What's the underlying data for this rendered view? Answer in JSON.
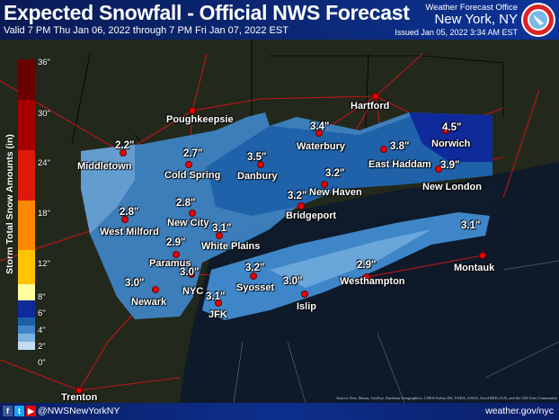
{
  "header": {
    "title": "Expected Snowfall - Official NWS Forecast",
    "valid": "Valid 7 PM Thu Jan 06, 2022 through 7 PM Fri Jan 07, 2022 EST",
    "office_label": "Weather Forecast Office",
    "office": "New York, NY",
    "issued": "Issued Jan 05, 2022 3:34 AM EST",
    "logo_text": "NATIONAL WEATHER SERVICE"
  },
  "legend": {
    "title": "Storm Total Snow Amounts (in)",
    "ticks": [
      "36\"",
      "30\"",
      "24\"",
      "18\"",
      "12\"",
      "8\"",
      "6\"",
      "4\"",
      "2\"",
      "0\""
    ],
    "colors": [
      "#6b0000",
      "#a50000",
      "#dd1a0a",
      "#ff8800",
      "#ffc400",
      "#ffffa0",
      "#0f2a9a",
      "#1c5fa8",
      "#3f86c8",
      "#7db3e0",
      "#c4dcf0"
    ]
  },
  "cities": [
    {
      "name": "Poughkeepsie",
      "value": ""
    },
    {
      "name": "Hartford",
      "value": ""
    },
    {
      "name": "Middletown",
      "value": "2.2\""
    },
    {
      "name": "Cold Spring",
      "value": "2.7\""
    },
    {
      "name": "Danbury",
      "value": "3.5\""
    },
    {
      "name": "Waterbury",
      "value": "3.4\""
    },
    {
      "name": "East Haddam",
      "value": "3.8\""
    },
    {
      "name": "Norwich",
      "value": "4.5\""
    },
    {
      "name": "New London",
      "value": "3.9\""
    },
    {
      "name": "New Haven",
      "value": "3.2\""
    },
    {
      "name": "Bridgeport",
      "value": "3.2\""
    },
    {
      "name": "New City",
      "value": "2.8\""
    },
    {
      "name": "White Plains",
      "value": "3.1\""
    },
    {
      "name": "West Milford",
      "value": "2.8\""
    },
    {
      "name": "Paramus",
      "value": "2.9\""
    },
    {
      "name": "NYC",
      "value": "3.0\""
    },
    {
      "name": "Newark",
      "value": "3.0\""
    },
    {
      "name": "JFK",
      "value": "3.1\""
    },
    {
      "name": "Syosset",
      "value": "3.2\""
    },
    {
      "name": "Islip",
      "value": "3.0\""
    },
    {
      "name": "Westhampton",
      "value": "2.9\""
    },
    {
      "name": "Montauk",
      "value": "3.1\""
    },
    {
      "name": "Trenton",
      "value": ""
    }
  ],
  "source": "Source: Esri, Maxar, GeoEye, Earthstar Geographics, CNES/Airbus DS, USDA, USGS, AeroGRID, IGN, and the GIS User Community",
  "footer": {
    "social_icons": [
      "facebook-icon",
      "twitter-icon",
      "youtube-icon"
    ],
    "handle": "@NWSNewYorkNY",
    "website": "weather.gov/nyc"
  }
}
